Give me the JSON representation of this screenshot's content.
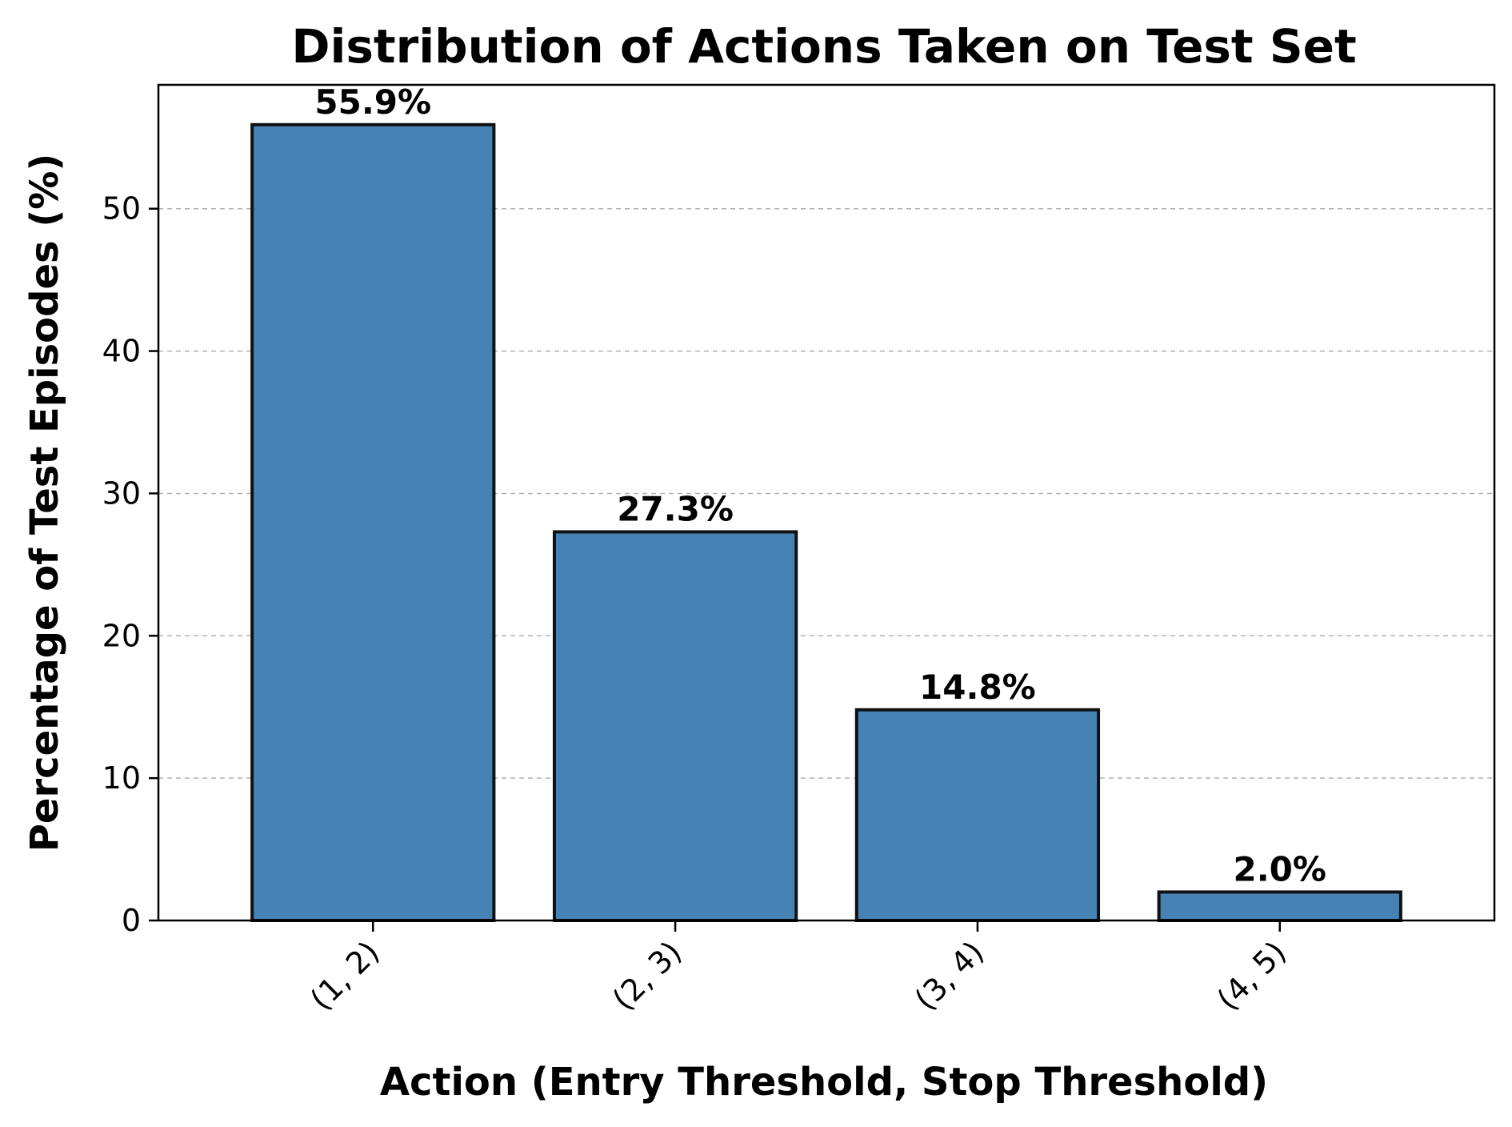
{
  "chart_data": {
    "type": "bar",
    "title": "Distribution of Actions Taken on Test Set",
    "xlabel": "Action (Entry Threshold, Stop Threshold)",
    "ylabel": "Percentage of Test Episodes (%)",
    "categories": [
      "(1, 2)",
      "(2, 3)",
      "(3, 4)",
      "(4, 5)"
    ],
    "values": [
      55.9,
      27.3,
      14.8,
      2.0
    ],
    "data_labels": [
      "55.9%",
      "27.3%",
      "14.8%",
      "2.0%"
    ],
    "ylim": [
      0,
      58.7
    ],
    "yticks": [
      0,
      10,
      20,
      30,
      40,
      50
    ],
    "ytick_labels": [
      "0",
      "10",
      "20",
      "30",
      "40",
      "50"
    ],
    "grid": "y-dashed",
    "bar_color": "#4682b4",
    "edge_color": "#111111"
  }
}
